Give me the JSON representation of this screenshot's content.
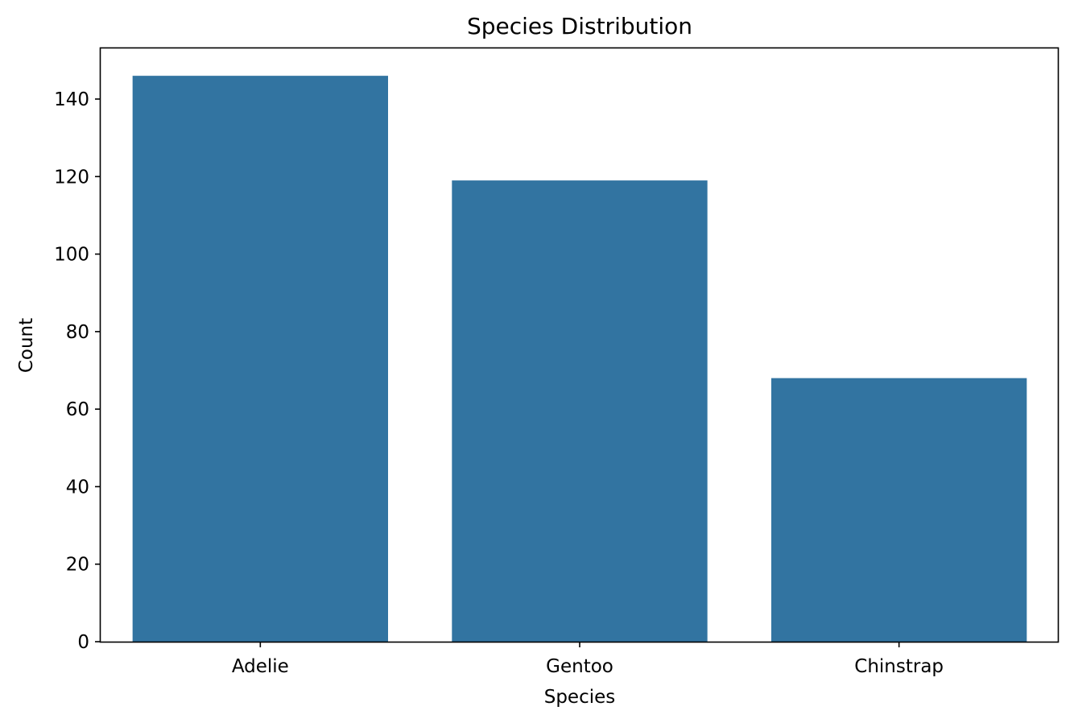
{
  "chart_data": {
    "type": "bar",
    "title": "Species Distribution",
    "xlabel": "Species",
    "ylabel": "Count",
    "categories": [
      "Adelie",
      "Gentoo",
      "Chinstrap"
    ],
    "values": [
      146,
      119,
      68
    ],
    "ylim": [
      0,
      153.3
    ],
    "yticks": [
      0,
      20,
      40,
      60,
      80,
      100,
      120,
      140
    ],
    "grid": false,
    "bar_color": "#3274a1"
  }
}
